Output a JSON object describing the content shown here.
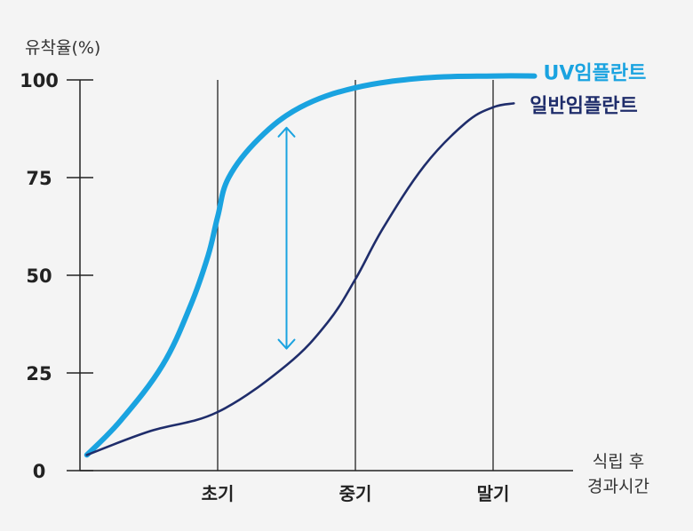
{
  "chart_data": {
    "type": "line",
    "ylabel": "유착율(%)",
    "xlabel": [
      "식립 후",
      "경과시간"
    ],
    "ylim": [
      0,
      100
    ],
    "yticks": [
      0,
      25,
      50,
      75,
      100
    ],
    "xlim": [
      0,
      3.6
    ],
    "x_categories": [
      {
        "label": "초기",
        "x": 1
      },
      {
        "label": "중기",
        "x": 2
      },
      {
        "label": "말기",
        "x": 3
      }
    ],
    "grid": "vertical lines at category positions",
    "legend": "right, next to line ends",
    "series": [
      {
        "name": "UV임플란트",
        "color": "#1aa3e0",
        "points": [
          [
            0.05,
            4
          ],
          [
            0.3,
            13
          ],
          [
            0.6,
            27
          ],
          [
            0.8,
            42
          ],
          [
            0.93,
            55
          ],
          [
            1,
            65
          ],
          [
            1.08,
            75
          ],
          [
            1.3,
            85
          ],
          [
            1.6,
            93
          ],
          [
            2,
            98
          ],
          [
            2.5,
            100.5
          ],
          [
            3,
            101
          ],
          [
            3.3,
            101
          ]
        ]
      },
      {
        "name": "일반임플란트",
        "color": "#1f2d6b",
        "points": [
          [
            0.05,
            4
          ],
          [
            0.5,
            10
          ],
          [
            1,
            15
          ],
          [
            1.5,
            27
          ],
          [
            1.8,
            38
          ],
          [
            2,
            49
          ],
          [
            2.2,
            62
          ],
          [
            2.5,
            78
          ],
          [
            2.8,
            89
          ],
          [
            3,
            93
          ],
          [
            3.15,
            94
          ]
        ]
      }
    ],
    "annotations": [
      {
        "type": "double-arrow",
        "x": 1.5,
        "y_from": 31,
        "y_to": 88,
        "color": "#1aa3e0"
      }
    ]
  }
}
